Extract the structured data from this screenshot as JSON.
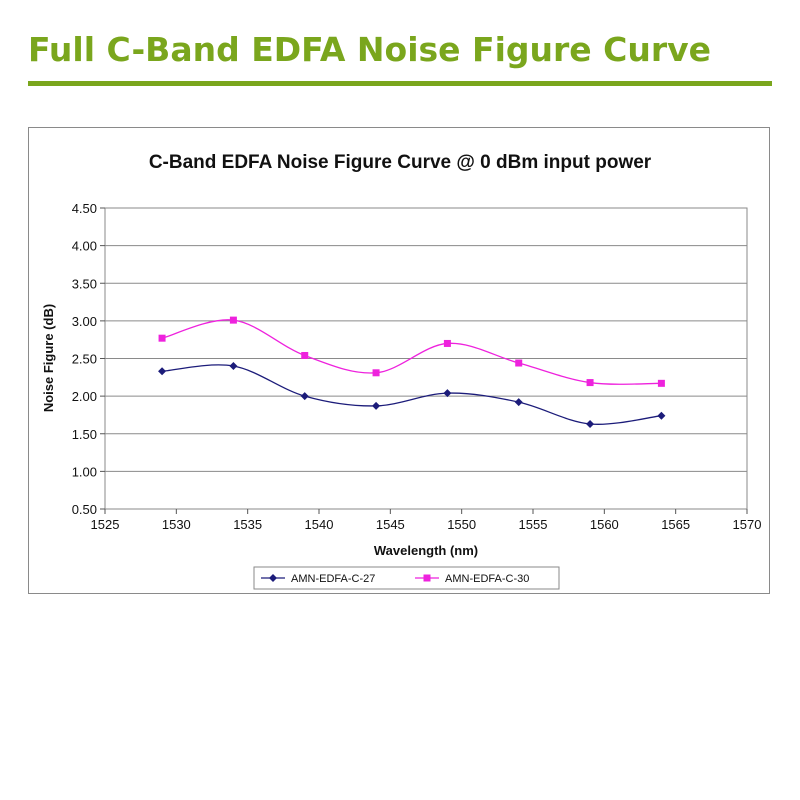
{
  "page": {
    "title": "Full C-Band EDFA Noise Figure Curve"
  },
  "colors": {
    "accent": "#7aa61d",
    "series1": "#1c1c7a",
    "series2": "#ee22dd"
  },
  "chart_data": {
    "type": "line",
    "title": "C-Band EDFA Noise Figure Curve @ 0 dBm input power",
    "xlabel": "Wavelength (nm)",
    "ylabel": "Noise Figure (dB)",
    "xlim": [
      1525,
      1570
    ],
    "ylim": [
      0.5,
      4.5
    ],
    "x_ticks": [
      1525,
      1530,
      1535,
      1540,
      1545,
      1550,
      1555,
      1560,
      1565,
      1570
    ],
    "y_ticks": [
      0.5,
      1.0,
      1.5,
      2.0,
      2.5,
      3.0,
      3.5,
      4.0,
      4.5
    ],
    "x_tick_labels": [
      "1525",
      "1530",
      "1535",
      "1540",
      "1545",
      "1550",
      "1555",
      "1560",
      "1565",
      "1570"
    ],
    "y_tick_labels": [
      "0.50",
      "1.00",
      "1.50",
      "2.00",
      "2.50",
      "3.00",
      "3.50",
      "4.00",
      "4.50"
    ],
    "grid": "horizontal",
    "legend_position": "bottom",
    "smooth": true,
    "series": [
      {
        "name": "AMN-EDFA-C-27",
        "color": "#1c1c7a",
        "marker": "diamond",
        "x": [
          1529,
          1534,
          1539,
          1544,
          1549,
          1554,
          1559,
          1564
        ],
        "y": [
          2.33,
          2.4,
          2.0,
          1.87,
          2.04,
          1.92,
          1.63,
          1.74
        ]
      },
      {
        "name": "AMN-EDFA-C-30",
        "color": "#ee22dd",
        "marker": "square",
        "x": [
          1529,
          1534,
          1539,
          1544,
          1549,
          1554,
          1559,
          1564
        ],
        "y": [
          2.77,
          3.01,
          2.54,
          2.31,
          2.7,
          2.44,
          2.18,
          2.17
        ]
      }
    ]
  }
}
